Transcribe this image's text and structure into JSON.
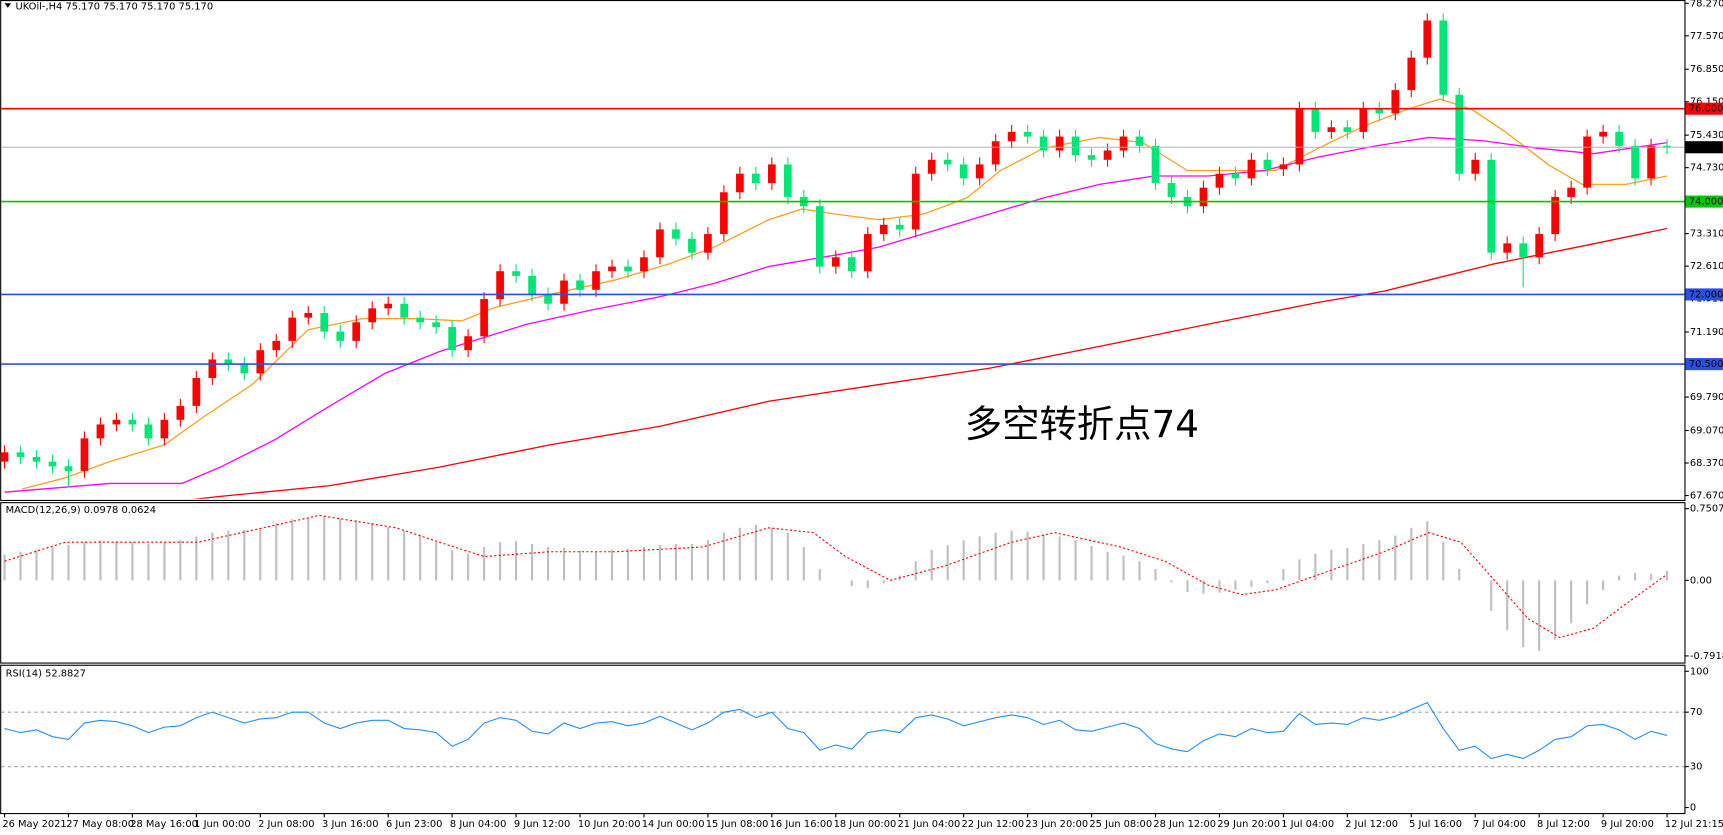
{
  "chart_data": [
    {
      "type": "candlestick",
      "title": "UKOil-,H4  75.170 75.170 75.170 75.170",
      "up_color": "#ff0000",
      "down_color": "#00e676",
      "categories": [
        "26 May 2021",
        null,
        null,
        null,
        "27 May 08:00",
        null,
        null,
        null,
        "28 May 16:00",
        null,
        null,
        null,
        "1 Jun 00:00",
        null,
        null,
        null,
        "2 Jun 08:00",
        null,
        null,
        null,
        "3 Jun 16:00",
        null,
        null,
        null,
        "6 Jun 23:00",
        null,
        null,
        null,
        "8 Jun 04:00",
        null,
        null,
        null,
        "9 Jun 12:00",
        null,
        null,
        null,
        "10 Jun 20:00",
        null,
        null,
        null,
        "14 Jun 00:00",
        null,
        null,
        null,
        "15 Jun 08:00",
        null,
        null,
        null,
        "16 Jun 16:00",
        null,
        null,
        null,
        "18 Jun 00:00",
        null,
        null,
        null,
        "21 Jun 04:00",
        null,
        null,
        null,
        "22 Jun 12:00",
        null,
        null,
        null,
        "23 Jun 20:00",
        null,
        null,
        null,
        "25 Jun 08:00",
        null,
        null,
        null,
        "28 Jun 12:00",
        null,
        null,
        null,
        "29 Jun 20:00",
        null,
        null,
        null,
        "1 Jul 04:00",
        null,
        null,
        null,
        "2 Jul 12:00",
        null,
        null,
        null,
        "5 Jul 16:00",
        null,
        null,
        null,
        "7 Jul 04:00",
        null,
        null,
        null,
        "8 Jul 12:00",
        null,
        null,
        null,
        "9 Jul 20:00",
        null,
        null,
        null,
        "12 Jul 21:15"
      ],
      "open": [
        68.4,
        68.6,
        68.5,
        68.4,
        68.3,
        68.2,
        68.9,
        69.2,
        69.3,
        69.2,
        68.9,
        69.3,
        69.6,
        70.2,
        70.6,
        70.5,
        70.3,
        70.8,
        71.0,
        71.5,
        71.6,
        71.2,
        71.0,
        71.4,
        71.7,
        71.8,
        71.5,
        71.4,
        71.3,
        70.8,
        71.1,
        71.9,
        72.5,
        72.4,
        72.0,
        71.8,
        72.3,
        72.1,
        72.5,
        72.6,
        72.5,
        72.8,
        73.4,
        73.2,
        72.9,
        73.3,
        74.2,
        74.6,
        74.4,
        74.8,
        74.1,
        73.9,
        72.6,
        72.8,
        72.5,
        73.3,
        73.5,
        73.4,
        74.6,
        74.9,
        74.8,
        74.5,
        74.8,
        75.3,
        75.5,
        75.4,
        75.1,
        75.4,
        75.0,
        74.9,
        75.1,
        75.4,
        75.2,
        74.4,
        74.1,
        73.9,
        74.3,
        74.6,
        74.5,
        74.9,
        74.7,
        74.8,
        76.0,
        75.5,
        75.6,
        75.5,
        76.0,
        75.9,
        76.4,
        77.1,
        77.9,
        76.3,
        74.6,
        74.9,
        72.9,
        73.1,
        72.8,
        73.3,
        74.1,
        74.3,
        75.4,
        75.5,
        75.2,
        74.5,
        75.2
      ],
      "high": [
        68.75,
        68.75,
        68.65,
        68.55,
        68.45,
        69.05,
        69.35,
        69.45,
        69.45,
        69.35,
        69.45,
        69.75,
        70.35,
        70.75,
        70.75,
        70.65,
        70.95,
        71.15,
        71.65,
        71.75,
        71.75,
        71.35,
        71.55,
        71.85,
        71.95,
        71.95,
        71.65,
        71.55,
        71.45,
        71.25,
        72.05,
        72.65,
        72.65,
        72.55,
        72.15,
        72.45,
        72.45,
        72.65,
        72.75,
        72.75,
        72.95,
        73.55,
        73.55,
        73.35,
        73.45,
        74.35,
        74.75,
        74.75,
        74.95,
        74.95,
        74.25,
        74.05,
        72.95,
        72.95,
        73.45,
        73.65,
        73.65,
        74.75,
        75.05,
        75.05,
        74.95,
        74.95,
        75.45,
        75.65,
        75.65,
        75.55,
        75.55,
        75.55,
        75.15,
        75.25,
        75.55,
        75.55,
        75.35,
        74.55,
        74.25,
        74.45,
        74.75,
        74.75,
        75.05,
        75.05,
        74.95,
        76.15,
        76.15,
        75.75,
        75.75,
        76.15,
        76.15,
        76.55,
        77.25,
        78.05,
        78.05,
        76.45,
        75.05,
        75.05,
        73.25,
        73.25,
        73.45,
        74.25,
        74.45,
        75.55,
        75.65,
        75.65,
        75.35,
        75.35,
        75.35
      ],
      "low": [
        68.25,
        68.35,
        68.25,
        68.15,
        67.85,
        68.05,
        68.75,
        69.05,
        69.05,
        68.75,
        68.75,
        69.15,
        69.45,
        70.05,
        70.35,
        70.15,
        70.15,
        70.65,
        70.85,
        71.35,
        71.05,
        70.85,
        70.85,
        71.25,
        71.55,
        71.35,
        71.25,
        71.15,
        70.65,
        70.65,
        70.95,
        71.75,
        72.25,
        71.85,
        71.65,
        71.65,
        71.95,
        71.95,
        72.35,
        72.35,
        72.35,
        72.65,
        73.05,
        72.75,
        72.75,
        73.15,
        74.05,
        74.25,
        74.25,
        73.95,
        73.75,
        72.45,
        72.45,
        72.35,
        72.35,
        73.15,
        73.25,
        73.25,
        74.45,
        74.65,
        74.35,
        74.35,
        74.65,
        75.15,
        75.25,
        74.95,
        74.95,
        74.85,
        74.75,
        74.75,
        74.95,
        75.05,
        74.25,
        73.95,
        73.75,
        73.75,
        74.15,
        74.35,
        74.35,
        74.55,
        74.55,
        74.65,
        75.35,
        75.35,
        75.35,
        75.35,
        75.75,
        75.75,
        76.25,
        76.95,
        76.15,
        74.45,
        74.45,
        72.75,
        72.75,
        72.15,
        72.65,
        73.15,
        73.95,
        74.15,
        75.25,
        75.05,
        74.35,
        74.35,
        75.02
      ],
      "close": [
        68.6,
        68.5,
        68.4,
        68.3,
        68.2,
        68.9,
        69.2,
        69.3,
        69.2,
        68.9,
        69.3,
        69.6,
        70.2,
        70.6,
        70.5,
        70.3,
        70.8,
        71.0,
        71.5,
        71.6,
        71.2,
        71.0,
        71.4,
        71.7,
        71.8,
        71.5,
        71.4,
        71.3,
        70.8,
        71.1,
        71.9,
        72.5,
        72.4,
        72.0,
        71.8,
        72.3,
        72.1,
        72.5,
        72.6,
        72.5,
        72.8,
        73.4,
        73.2,
        72.9,
        73.3,
        74.2,
        74.6,
        74.4,
        74.8,
        74.1,
        73.9,
        72.6,
        72.8,
        72.5,
        73.3,
        73.5,
        73.4,
        74.6,
        74.9,
        74.8,
        74.5,
        74.8,
        75.3,
        75.5,
        75.4,
        75.1,
        75.4,
        75.0,
        74.9,
        75.1,
        75.4,
        75.2,
        74.4,
        74.1,
        73.9,
        74.3,
        74.6,
        74.5,
        74.9,
        74.7,
        74.8,
        76.0,
        75.5,
        75.6,
        75.5,
        76.0,
        75.9,
        76.4,
        77.1,
        77.9,
        76.3,
        74.6,
        74.9,
        72.9,
        73.1,
        72.8,
        73.3,
        74.1,
        74.3,
        75.4,
        75.5,
        75.2,
        74.5,
        75.2,
        75.17
      ],
      "series": [
        {
          "color": "#ffa020",
          "x": [
            1.1,
            3.8,
            6.6,
            10.0,
            12.4,
            15.5,
            19.0,
            22.4,
            25.8,
            28.6,
            30.7,
            34.1,
            38.2,
            41.6,
            44.4,
            47.8,
            49.9,
            52.0,
            54.7,
            57.5,
            60.2,
            62.3,
            65.0,
            68.5,
            71.2,
            74.0,
            76.0,
            79.5,
            82.2,
            85.0,
            87.7,
            89.8,
            91.8,
            93.9,
            96.6,
            98.7,
            101.4,
            104
          ],
          "values": [
            67.81,
            68.05,
            68.4,
            68.76,
            69.35,
            70.06,
            71.24,
            71.48,
            71.48,
            71.43,
            71.72,
            72.0,
            72.31,
            72.66,
            73.02,
            73.61,
            73.84,
            73.73,
            73.61,
            73.73,
            74.08,
            74.67,
            75.15,
            75.38,
            75.27,
            74.67,
            74.67,
            74.67,
            75.15,
            75.62,
            75.98,
            76.21,
            75.98,
            75.5,
            74.79,
            74.37,
            74.37,
            74.55
          ]
        },
        {
          "color": "#ff00ff",
          "x": [
            0,
            6.6,
            11.1,
            13.5,
            16.9,
            20.3,
            23.8,
            27.2,
            29.3,
            32.7,
            36.8,
            41.0,
            44.4,
            47.8,
            52.0,
            54.7,
            58.1,
            61.6,
            65.0,
            68.5,
            71.9,
            75.3,
            78.8,
            82.2,
            85.6,
            89.1,
            92.5,
            95.9,
            99.4,
            104
          ],
          "values": [
            67.74,
            67.93,
            67.93,
            68.28,
            68.87,
            69.59,
            70.3,
            70.77,
            71.0,
            71.36,
            71.67,
            71.95,
            72.24,
            72.6,
            72.85,
            73.02,
            73.37,
            73.73,
            74.08,
            74.37,
            74.55,
            74.55,
            74.67,
            74.96,
            75.19,
            75.38,
            75.31,
            75.15,
            75.03,
            75.27
          ]
        },
        {
          "color": "#ff0000",
          "x": [
            11.4,
            13.5,
            20.3,
            27.2,
            34.1,
            41.0,
            47.8,
            54.7,
            61.6,
            68.5,
            75.3,
            82.2,
            86.3,
            89.1,
            93.2,
            99.4,
            104
          ],
          "values": [
            67.57,
            67.65,
            67.88,
            68.28,
            68.76,
            69.16,
            69.7,
            70.06,
            70.41,
            70.88,
            71.36,
            71.83,
            72.07,
            72.31,
            72.66,
            73.09,
            73.42
          ]
        }
      ],
      "hlines": [
        {
          "value": 76,
          "label": "76.000",
          "color": "#ff0000"
        },
        {
          "value": 74,
          "label": "74.000",
          "color": "#00c800"
        },
        {
          "value": 72,
          "label": "72.000",
          "color": "#2850e8"
        },
        {
          "value": 70.5,
          "label": "70.500",
          "color": "#2850e8"
        }
      ],
      "price_line": {
        "value": 75.17,
        "label": "75.170",
        "color": "#b0b0b0",
        "label_color": "#000000"
      },
      "annotation": {
        "text": "多空转折点74",
        "color": "#ff0000"
      },
      "ylim": [
        67.67,
        78.27
      ],
      "yticks": [
        {
          "value": 78.27,
          "label": "78.270"
        },
        {
          "value": 77.57,
          "label": "77.570"
        },
        {
          "value": 76.85,
          "label": "76.850"
        },
        {
          "value": 76.15,
          "label": "76.150"
        },
        {
          "value": 75.43,
          "label": "75.430"
        },
        {
          "value": 74.73,
          "label": "74.730"
        },
        {
          "value": 74.01,
          "label": "74.010"
        },
        {
          "value": 73.31,
          "label": "73.310"
        },
        {
          "value": 72.61,
          "label": "72.610"
        },
        {
          "value": 71.91,
          "label": "71.910"
        },
        {
          "value": 71.19,
          "label": "71.190"
        },
        {
          "value": 70.49,
          "label": "70.490"
        },
        {
          "value": 69.79,
          "label": "69.790"
        },
        {
          "value": 69.07,
          "label": "69.070"
        },
        {
          "value": 68.37,
          "label": "68.370"
        },
        {
          "value": 67.67,
          "label": "67.670"
        }
      ]
    },
    {
      "type": "macd",
      "title": "MACD(12,26,9) 0.0978 0.0624",
      "series": [
        {
          "color": "#c0c0c0",
          "values": [
            0.27,
            0.3,
            0.32,
            0.35,
            0.37,
            0.4,
            0.42,
            0.41,
            0.4,
            0.38,
            0.4,
            0.42,
            0.46,
            0.5,
            0.52,
            0.53,
            0.55,
            0.6,
            0.64,
            0.66,
            0.67,
            0.65,
            0.63,
            0.6,
            0.56,
            0.52,
            0.48,
            0.4,
            0.32,
            0.28,
            0.35,
            0.4,
            0.41,
            0.38,
            0.35,
            0.34,
            0.31,
            0.3,
            0.32,
            0.33,
            0.35,
            0.37,
            0.38,
            0.38,
            0.42,
            0.5,
            0.55,
            0.58,
            0.55,
            0.5,
            0.35,
            0.12,
            0.0,
            -0.06,
            -0.08,
            -0.03,
            0.05,
            0.2,
            0.32,
            0.37,
            0.42,
            0.46,
            0.5,
            0.52,
            0.51,
            0.48,
            0.46,
            0.42,
            0.36,
            0.3,
            0.26,
            0.2,
            0.12,
            -0.02,
            -0.12,
            -0.14,
            -0.13,
            -0.1,
            -0.07,
            -0.03,
            0.12,
            0.22,
            0.28,
            0.32,
            0.34,
            0.38,
            0.42,
            0.47,
            0.55,
            0.62,
            0.4,
            0.12,
            0.0,
            -0.32,
            -0.52,
            -0.7,
            -0.74,
            -0.62,
            -0.45,
            -0.25,
            -0.1,
            0.05,
            0.08,
            0.07,
            0.0978
          ]
        },
        {
          "color": "#ff0000",
          "x": [
            0,
            3.8,
            12.1,
            16.2,
            19.7,
            24.5,
            27.2,
            30.0,
            34.1,
            38.2,
            43.7,
            47.8,
            50.6,
            52.6,
            55.4,
            58.8,
            63.0,
            65.7,
            69.8,
            72.6,
            75.3,
            77.4,
            79.5,
            82.9,
            86.3,
            89.1,
            91.1,
            93.2,
            95.3,
            97.3,
            99.4,
            101.4,
            104
          ],
          "values": [
            0.2,
            0.4,
            0.4,
            0.55,
            0.68,
            0.55,
            0.4,
            0.25,
            0.3,
            0.3,
            0.35,
            0.55,
            0.5,
            0.25,
            0.0,
            0.15,
            0.4,
            0.5,
            0.35,
            0.2,
            -0.05,
            -0.15,
            -0.1,
            0.1,
            0.3,
            0.5,
            0.4,
            0.0,
            -0.4,
            -0.6,
            -0.5,
            -0.25,
            0.0624
          ]
        }
      ],
      "ylim": [
        -0.7918,
        0.7507
      ],
      "yticks": [
        0.7507,
        {
          "value": 0,
          "label": "0.00"
        },
        -0.7918
      ]
    },
    {
      "type": "line",
      "title": "RSI(14) 52.8827",
      "color": "#1e90ff",
      "values": [
        58,
        55,
        57,
        52,
        50,
        62,
        64,
        63,
        60,
        55,
        59,
        60,
        66,
        70,
        66,
        62,
        65,
        66,
        70,
        70,
        62,
        58,
        62,
        64,
        64,
        58,
        57,
        55,
        45,
        50,
        62,
        66,
        64,
        56,
        54,
        62,
        58,
        62,
        63,
        60,
        62,
        67,
        62,
        57,
        62,
        70,
        72,
        66,
        70,
        58,
        55,
        42,
        46,
        43,
        55,
        57,
        55,
        66,
        68,
        65,
        60,
        63,
        66,
        68,
        66,
        61,
        64,
        57,
        56,
        59,
        62,
        58,
        47,
        43,
        41,
        49,
        54,
        52,
        58,
        55,
        56,
        69,
        61,
        62,
        61,
        66,
        64,
        67,
        72,
        77,
        58,
        42,
        45,
        36,
        39,
        36,
        42,
        50,
        52,
        60,
        61,
        57,
        50,
        56,
        52.88
      ],
      "ylim": [
        0,
        100
      ],
      "yticks": [
        100,
        70,
        30,
        0
      ],
      "grid": "dashed"
    }
  ]
}
